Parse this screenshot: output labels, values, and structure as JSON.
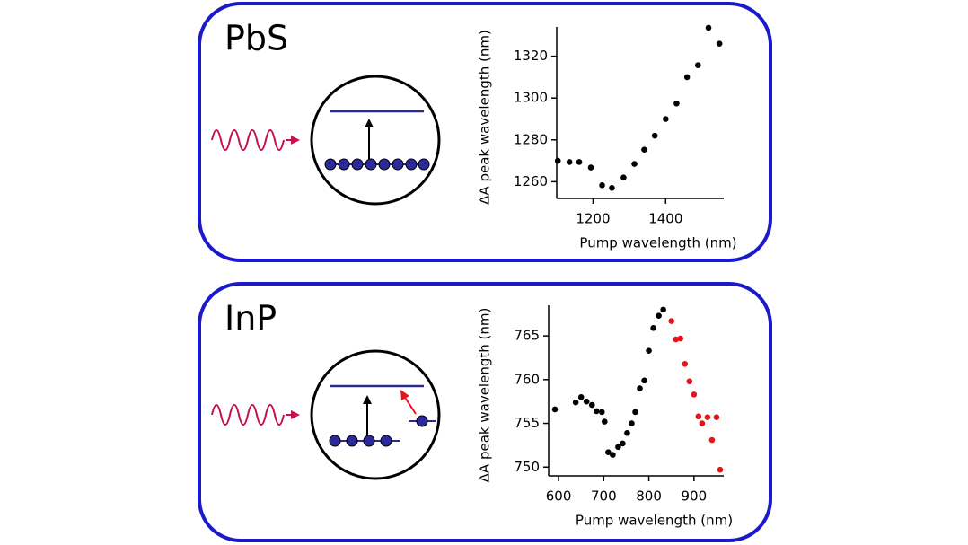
{
  "chart_data": [
    {
      "type": "scatter",
      "title": "PbS",
      "xlabel": "Pump wavelength (nm)",
      "ylabel": "ΔA peak wavelength (nm)",
      "xlim": [
        1100,
        1560
      ],
      "ylim": [
        1252,
        1334
      ],
      "xticks": [
        1200,
        1400
      ],
      "yticks": [
        1260,
        1280,
        1300,
        1320
      ],
      "series": [
        {
          "color": "#000000",
          "x": [
            1103,
            1135,
            1162,
            1194,
            1225,
            1252,
            1284,
            1314,
            1341,
            1370,
            1400,
            1430,
            1459,
            1489,
            1518,
            1548
          ],
          "values": [
            1270,
            1269.4,
            1269.4,
            1266.8,
            1258.3,
            1257,
            1262,
            1268.5,
            1275.3,
            1282,
            1290,
            1297.4,
            1310,
            1315.7,
            1333.6,
            1326
          ]
        }
      ]
    },
    {
      "type": "scatter",
      "title": "InP",
      "xlabel": "Pump wavelength (nm)",
      "ylabel": "ΔA peak wavelength (nm)",
      "xlim": [
        578,
        966
      ],
      "ylim": [
        749,
        768.5
      ],
      "xticks": [
        600,
        700,
        800,
        900
      ],
      "yticks": [
        750,
        755,
        760,
        765
      ],
      "series": [
        {
          "color": "#000000",
          "x": [
            592,
            638,
            650,
            662,
            674,
            684,
            696,
            702,
            710,
            720,
            732,
            742,
            752,
            762,
            770,
            780,
            790,
            800,
            810,
            822,
            832
          ],
          "values": [
            756.6,
            757.4,
            758,
            757.5,
            757.1,
            756.4,
            756.3,
            755.2,
            751.7,
            751.4,
            752.3,
            752.7,
            753.9,
            755,
            756.3,
            759,
            759.9,
            763.3,
            765.9,
            767.3,
            768
          ]
        },
        {
          "color": "#e8141c",
          "x": [
            850,
            860,
            870,
            880,
            890,
            900,
            910,
            918,
            930,
            940,
            950,
            958
          ],
          "values": [
            766.7,
            764.6,
            764.7,
            761.8,
            759.8,
            758.3,
            755.8,
            755,
            755.7,
            753.1,
            755.7,
            749.7
          ]
        }
      ]
    }
  ]
}
